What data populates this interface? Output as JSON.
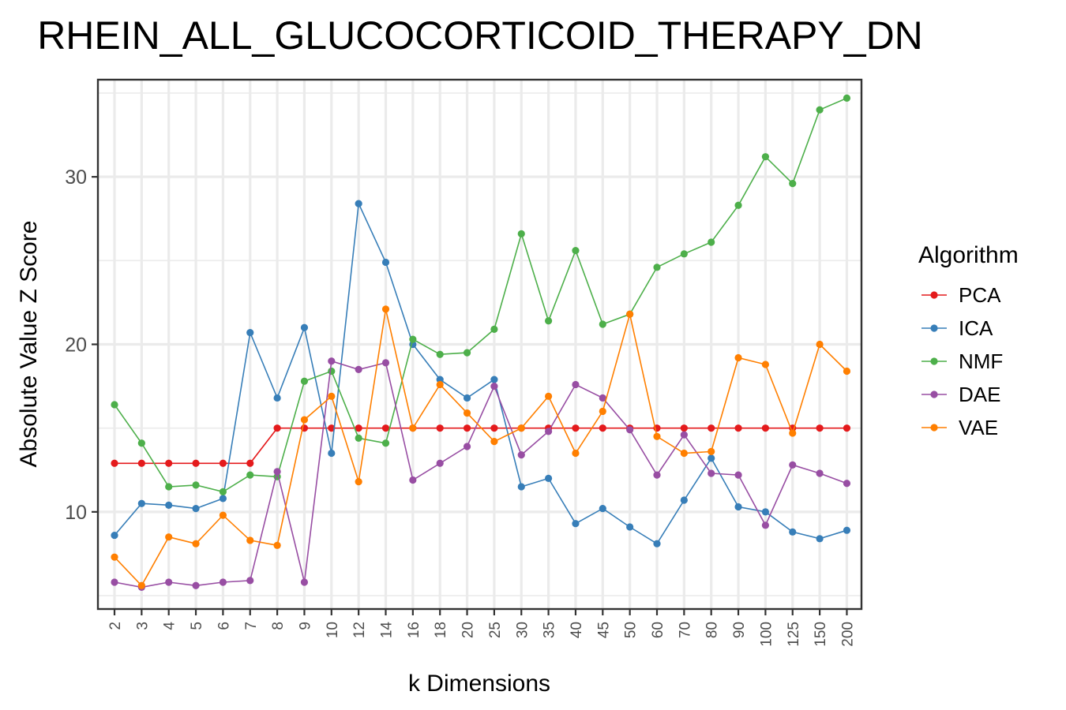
{
  "chart_data": {
    "type": "line",
    "title": "RHEIN_ALL_GLUCOCORTICOID_THERAPY_DN",
    "xlabel": "k Dimensions",
    "ylabel": "Absolute Value Z Score",
    "categories": [
      "2",
      "3",
      "4",
      "5",
      "6",
      "7",
      "8",
      "9",
      "10",
      "12",
      "14",
      "16",
      "18",
      "20",
      "25",
      "30",
      "35",
      "40",
      "45",
      "50",
      "60",
      "70",
      "80",
      "90",
      "100",
      "125",
      "150",
      "200"
    ],
    "yticks": [
      10,
      20,
      30
    ],
    "ylim": [
      4.2,
      35.8
    ],
    "grid": true,
    "legend": {
      "title": "Algorithm",
      "position": "right"
    },
    "series": [
      {
        "name": "PCA",
        "color": "#e41a1c",
        "values": [
          12.9,
          12.9,
          12.9,
          12.9,
          12.9,
          12.9,
          15.0,
          15.0,
          15.0,
          15.0,
          15.0,
          15.0,
          15.0,
          15.0,
          15.0,
          15.0,
          15.0,
          15.0,
          15.0,
          15.0,
          15.0,
          15.0,
          15.0,
          15.0,
          15.0,
          15.0,
          15.0,
          15.0
        ]
      },
      {
        "name": "ICA",
        "color": "#377eb8",
        "values": [
          8.6,
          10.5,
          10.4,
          10.2,
          10.8,
          20.7,
          16.8,
          21.0,
          13.5,
          28.4,
          24.9,
          20.0,
          17.9,
          16.8,
          17.9,
          11.5,
          12.0,
          9.3,
          10.2,
          9.1,
          8.1,
          10.7,
          13.2,
          10.3,
          10.0,
          8.8,
          8.4,
          8.9
        ]
      },
      {
        "name": "NMF",
        "color": "#4daf4a",
        "values": [
          16.4,
          14.1,
          11.5,
          11.6,
          11.2,
          12.2,
          12.1,
          17.8,
          18.4,
          14.4,
          14.1,
          20.3,
          19.4,
          19.5,
          20.9,
          26.6,
          21.4,
          25.6,
          21.2,
          21.8,
          24.6,
          25.4,
          26.1,
          28.3,
          31.2,
          29.6,
          34.0,
          34.7
        ]
      },
      {
        "name": "DAE",
        "color": "#984ea3",
        "values": [
          5.8,
          5.5,
          5.8,
          5.6,
          5.8,
          5.9,
          12.4,
          5.8,
          19.0,
          18.5,
          18.9,
          11.9,
          12.9,
          13.9,
          17.5,
          13.4,
          14.8,
          17.6,
          16.8,
          14.9,
          12.2,
          14.6,
          12.3,
          12.2,
          9.2,
          12.8,
          12.3,
          11.7
        ]
      },
      {
        "name": "VAE",
        "color": "#ff7f00",
        "values": [
          7.3,
          5.6,
          8.5,
          8.1,
          9.8,
          8.3,
          8.0,
          15.5,
          16.9,
          11.8,
          22.1,
          15.0,
          17.6,
          15.9,
          14.2,
          15.0,
          16.9,
          13.5,
          16.0,
          21.8,
          14.5,
          13.5,
          13.6,
          19.2,
          18.8,
          14.7,
          20.0,
          18.4
        ]
      }
    ]
  }
}
